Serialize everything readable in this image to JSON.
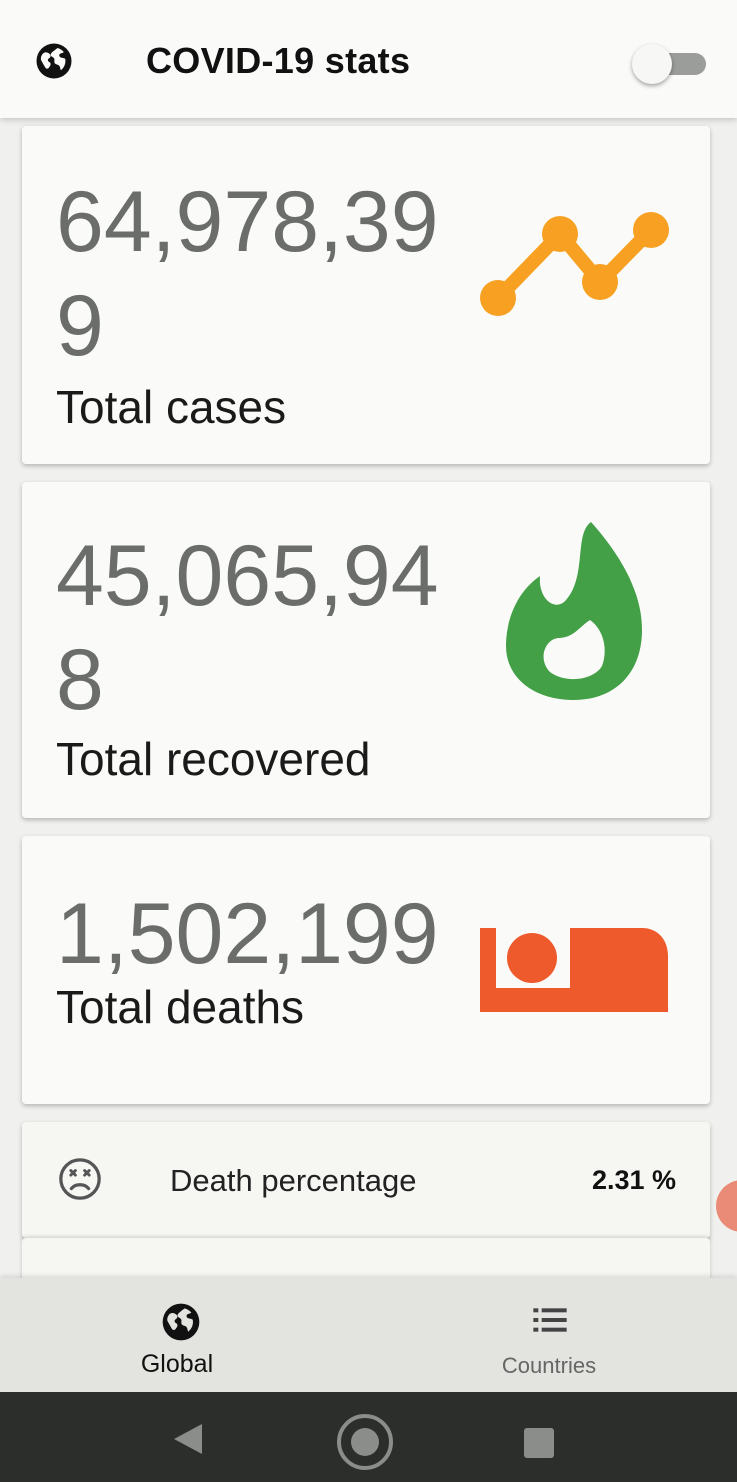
{
  "app_bar": {
    "title": "COVID-19 stats",
    "globe_icon": "globe-icon",
    "theme_toggle": {
      "state": "off"
    }
  },
  "cards": {
    "cases": {
      "value": "64,978,399",
      "label": "Total cases",
      "icon": "trending-line-icon",
      "color": "#f7a021"
    },
    "recovered": {
      "value": "45,065,948",
      "label": "Total recovered",
      "icon": "drop-icon",
      "color": "#43a047"
    },
    "deaths": {
      "value": "1,502,199",
      "label": "Total deaths",
      "icon": "bed-icon",
      "color": "#ef5a2c"
    }
  },
  "death_percentage": {
    "label": "Death percentage",
    "value": "2.31 %",
    "icon": "sad-face-icon"
  },
  "bottom_nav": {
    "items": [
      {
        "label": "Global",
        "icon": "globe-icon",
        "active": true
      },
      {
        "label": "Countries",
        "icon": "list-icon",
        "active": false
      }
    ]
  },
  "system_nav": [
    "back-icon",
    "home-icon",
    "recents-icon"
  ]
}
